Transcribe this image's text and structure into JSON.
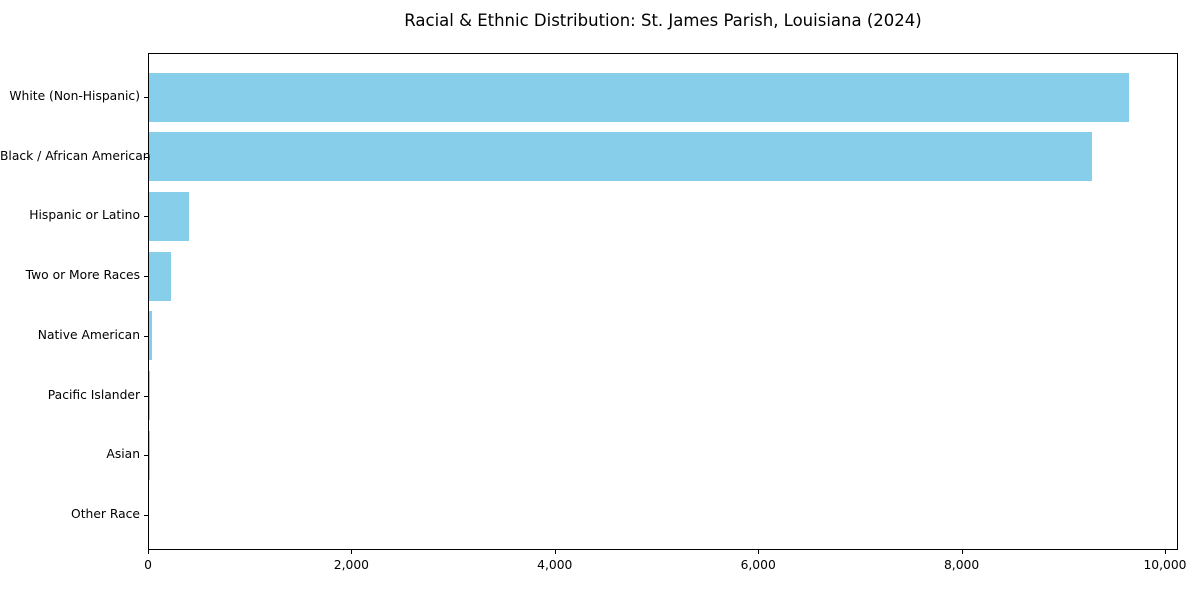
{
  "title": "Racial & Ethnic Distribution: St. James Parish, Louisiana (2024)",
  "chart_data": {
    "type": "bar",
    "orientation": "horizontal",
    "title": "Racial & Ethnic Distribution: St. James Parish, Louisiana (2024)",
    "xlabel": "",
    "ylabel": "",
    "categories": [
      "White (Non-Hispanic)",
      "Black / African American",
      "Hispanic or Latino",
      "Two or More Races",
      "Native American",
      "Pacific Islander",
      "Asian",
      "Other Race"
    ],
    "values": [
      9640,
      9270,
      390,
      220,
      30,
      10,
      5,
      0
    ],
    "xlim": [
      0,
      10128
    ],
    "xticks": {
      "values": [
        0,
        2000,
        4000,
        6000,
        8000,
        10000
      ],
      "labels": [
        "0",
        "2,000",
        "4,000",
        "6,000",
        "8,000",
        "10,000"
      ]
    },
    "bar_color": "#87CEEB",
    "grid": false,
    "legend": null,
    "background_color": "#ffffff",
    "spine_color": "#000000"
  }
}
